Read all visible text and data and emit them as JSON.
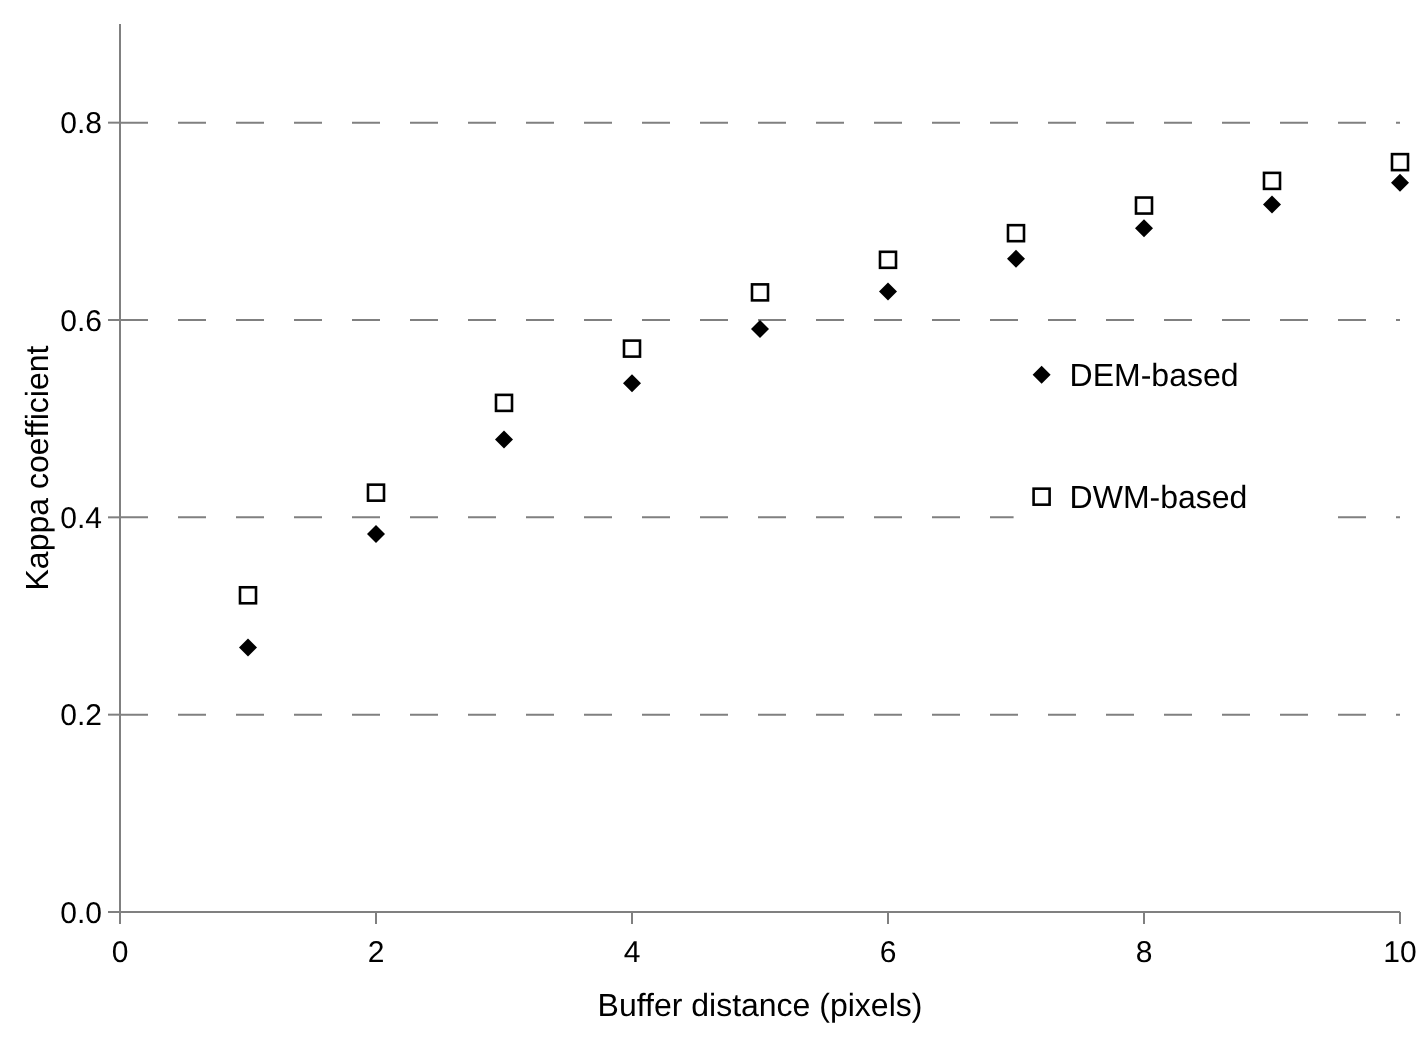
{
  "chart_data": {
    "type": "scatter",
    "xlabel": "Buffer distance (pixels)",
    "ylabel": "Kappa coefficient",
    "x": [
      1,
      2,
      3,
      4,
      5,
      6,
      7,
      8,
      9,
      10
    ],
    "series": [
      {
        "name": "DEM-based",
        "color": "#000000",
        "marker": "diamond",
        "values": [
          0.268,
          0.383,
          0.479,
          0.536,
          0.591,
          0.629,
          0.662,
          0.693,
          0.717,
          0.739
        ]
      },
      {
        "name": "DWM-based",
        "color": "#000000",
        "marker": "square",
        "values": [
          0.321,
          0.425,
          0.516,
          0.571,
          0.628,
          0.661,
          0.688,
          0.716,
          0.741,
          0.76
        ]
      }
    ],
    "xlim": [
      0,
      10
    ],
    "xticks": [
      0,
      2,
      4,
      6,
      8,
      10
    ],
    "ylim": [
      0,
      0.9
    ],
    "yticks": [
      {
        "value": 0,
        "label": "0.0"
      },
      {
        "value": 0.2,
        "label": "0.2"
      },
      {
        "value": 0.4,
        "label": "0.4"
      },
      {
        "value": 0.6,
        "label": "0.6"
      },
      {
        "value": 0.8,
        "label": "0.8"
      }
    ],
    "grid": "y",
    "legend": "right"
  }
}
